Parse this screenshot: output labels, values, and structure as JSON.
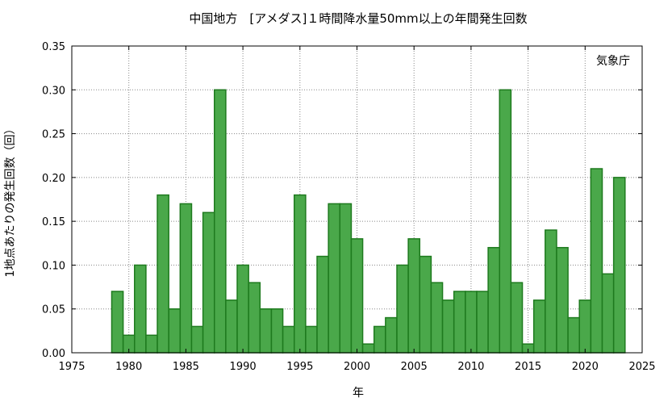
{
  "chart_data": {
    "type": "bar",
    "title": "中国地方　[アメダス]１時間降水量50mm以上の年間発生回数",
    "xlabel": "年",
    "ylabel": "1地点あたりの発生回数（回）",
    "annotation": "気象庁",
    "xlim": [
      1975,
      2025
    ],
    "ylim": [
      0,
      0.35
    ],
    "xticks": [
      1975,
      1980,
      1985,
      1990,
      1995,
      2000,
      2005,
      2010,
      2015,
      2020,
      2025
    ],
    "yticks": [
      "0.00",
      "0.05",
      "0.10",
      "0.15",
      "0.20",
      "0.25",
      "0.30",
      "0.35"
    ],
    "grid": true,
    "bar_color": "#4aa84a",
    "bar_edge_color": "#1e7a1e",
    "categories": [
      1979,
      1980,
      1981,
      1982,
      1983,
      1984,
      1985,
      1986,
      1987,
      1988,
      1989,
      1990,
      1991,
      1992,
      1993,
      1994,
      1995,
      1996,
      1997,
      1998,
      1999,
      2000,
      2001,
      2002,
      2003,
      2004,
      2005,
      2006,
      2007,
      2008,
      2009,
      2010,
      2011,
      2012,
      2013,
      2014,
      2015,
      2016,
      2017,
      2018,
      2019,
      2020,
      2021,
      2022,
      2023
    ],
    "values": [
      0.07,
      0.02,
      0.1,
      0.02,
      0.18,
      0.05,
      0.17,
      0.03,
      0.16,
      0.3,
      0.06,
      0.1,
      0.08,
      0.05,
      0.05,
      0.03,
      0.18,
      0.03,
      0.11,
      0.17,
      0.17,
      0.13,
      0.01,
      0.03,
      0.04,
      0.1,
      0.13,
      0.11,
      0.08,
      0.06,
      0.07,
      0.07,
      0.07,
      0.12,
      0.3,
      0.08,
      0.01,
      0.06,
      0.14,
      0.12,
      0.04,
      0.06,
      0.21,
      0.09,
      0.2
    ]
  }
}
